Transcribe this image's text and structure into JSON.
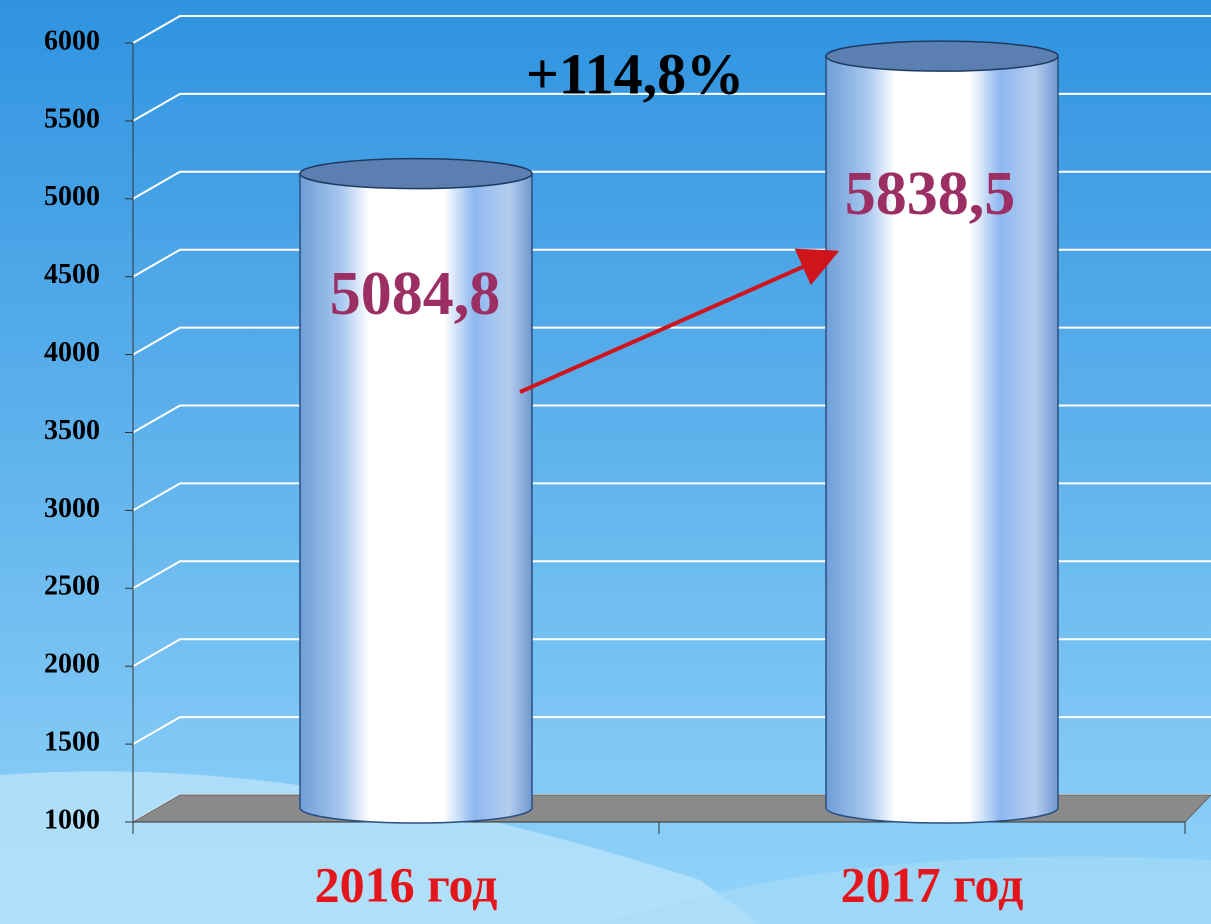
{
  "chart_data": {
    "type": "bar",
    "annotation": "+114,8%",
    "categories": [
      "2016 год",
      "2017 год"
    ],
    "values": [
      5084.8,
      5838.5
    ],
    "value_labels": [
      "5084,8",
      "5838,5"
    ],
    "color": "#7fb2ea",
    "ylim": [
      1000,
      6000
    ],
    "yticks": [
      1000,
      1500,
      2000,
      2500,
      3000,
      3500,
      4000,
      4500,
      5000,
      5500,
      6000
    ],
    "grid": true
  }
}
